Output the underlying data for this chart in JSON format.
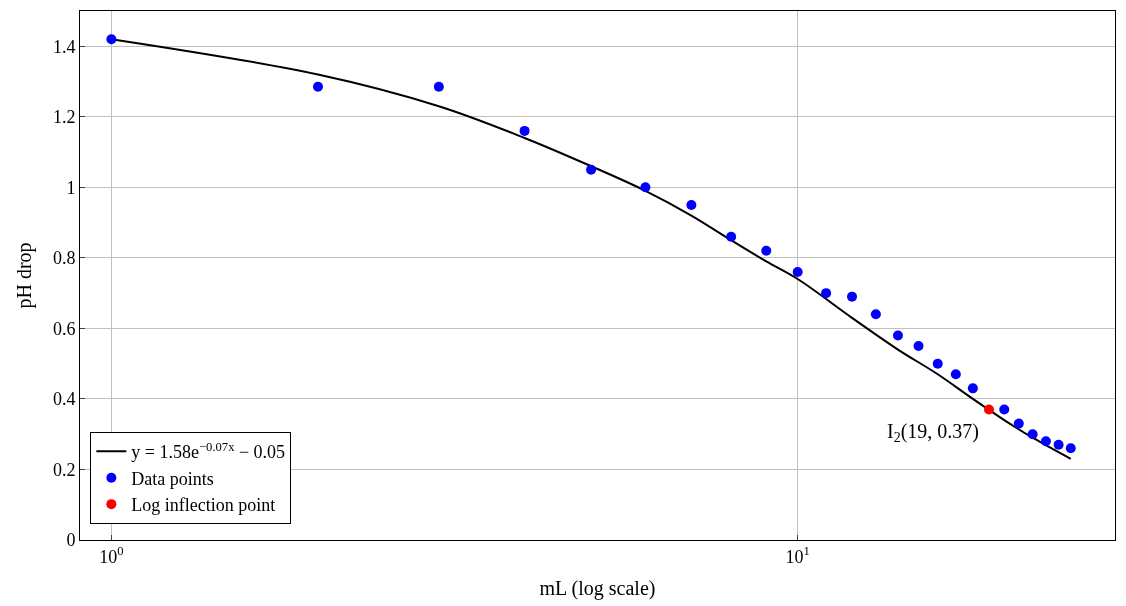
{
  "chart_data": {
    "type": "scatter",
    "xlabel": "mL (log scale)",
    "ylabel": "pH drop",
    "log": "x",
    "grid": true,
    "legend": "bottom left",
    "xlim": [
      0.9,
      29
    ],
    "xticks": [
      {
        "value": 1,
        "label": "10$^{0}$"
      },
      {
        "value": 10,
        "label": "10$^{1}$"
      }
    ],
    "ylim": [
      0,
      1.5
    ],
    "yticks": [
      0,
      0.2,
      0.4,
      0.6,
      0.8,
      1,
      1.2,
      1.4
    ],
    "series": [
      {
        "type": "line",
        "name": "y = 1.58e$^{−0.07x}$ − 0.05",
        "color": "#000000",
        "marker": "none",
        "line_style": "solid",
        "x": [
          1,
          2,
          3,
          4,
          5,
          6,
          7,
          8,
          9,
          10,
          12,
          14,
          16,
          18,
          20,
          22,
          25
        ],
        "values": [
          1.42,
          1.32,
          1.23,
          1.14,
          1.06,
          0.99,
          0.92,
          0.85,
          0.79,
          0.74,
          0.63,
          0.54,
          0.47,
          0.4,
          0.34,
          0.29,
          0.23
        ]
      },
      {
        "name": "Data points",
        "color": "#0000ff",
        "marker": "circle",
        "x": [
          1,
          2,
          3,
          4,
          5,
          6,
          7,
          8,
          9,
          10,
          11,
          12,
          13,
          14,
          15,
          16,
          17,
          18,
          20,
          21,
          22,
          23,
          24,
          25
        ],
        "values": [
          1.42,
          1.285,
          1.285,
          1.16,
          1.05,
          1.0,
          0.95,
          0.86,
          0.82,
          0.76,
          0.7,
          0.69,
          0.64,
          0.58,
          0.55,
          0.5,
          0.47,
          0.43,
          0.37,
          0.33,
          0.3,
          0.28,
          0.27,
          0.26
        ]
      },
      {
        "name": "Log inflection point",
        "color": "#ff0000",
        "marker": "circle",
        "x": [
          19
        ],
        "values": [
          0.37
        ]
      }
    ],
    "annotations": [
      {
        "text": "I$_{2}$(19, 0.37)",
        "x": 19,
        "y": 0.37
      }
    ]
  }
}
